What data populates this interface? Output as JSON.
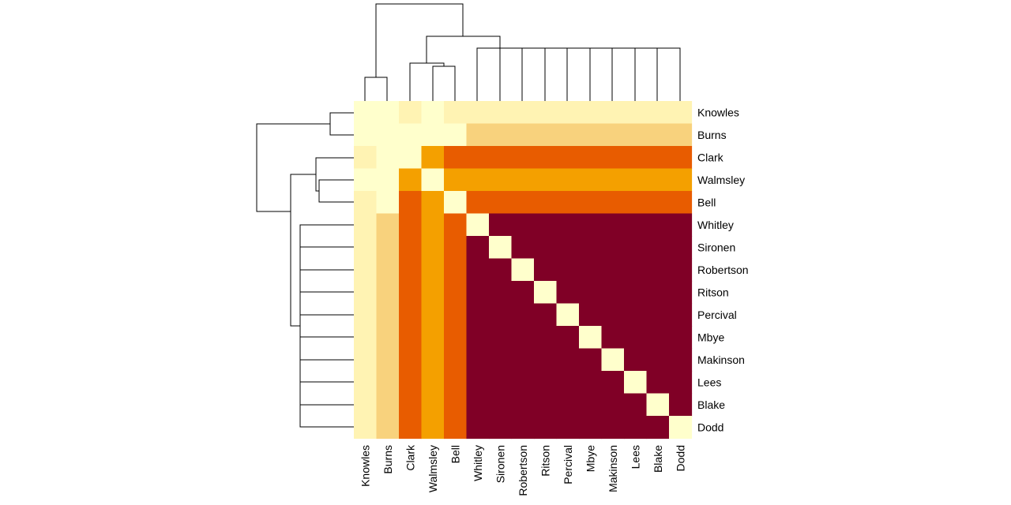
{
  "chart_data": {
    "type": "heatmap",
    "title": "",
    "xlabel": "",
    "ylabel": "",
    "legend": "none",
    "grid": false,
    "rows": [
      "Knowles",
      "Burns",
      "Clark",
      "Walmsley",
      "Bell",
      "Whitley",
      "Sironen",
      "Robertson",
      "Ritson",
      "Percival",
      "Mbye",
      "Makinson",
      "Lees",
      "Blake",
      "Dodd"
    ],
    "columns": [
      "Knowles",
      "Burns",
      "Clark",
      "Walmsley",
      "Bell",
      "Whitley",
      "Sironen",
      "Robertson",
      "Ritson",
      "Percival",
      "Mbye",
      "Makinson",
      "Lees",
      "Blake",
      "Dodd"
    ],
    "color_scale": [
      "#FFFFCC",
      "#FFF3B3",
      "#F8D27D",
      "#F4A000",
      "#E85C00",
      "#800026"
    ],
    "values": [
      [
        0,
        0,
        1,
        0,
        1,
        1,
        1,
        1,
        1,
        1,
        1,
        1,
        1,
        1,
        1
      ],
      [
        0,
        0,
        0,
        0,
        0,
        2,
        2,
        2,
        2,
        2,
        2,
        2,
        2,
        2,
        2
      ],
      [
        1,
        0,
        0,
        3,
        4,
        4,
        4,
        4,
        4,
        4,
        4,
        4,
        4,
        4,
        4
      ],
      [
        0,
        0,
        3,
        0,
        3,
        3,
        3,
        3,
        3,
        3,
        3,
        3,
        3,
        3,
        3
      ],
      [
        1,
        0,
        4,
        3,
        0,
        4,
        4,
        4,
        4,
        4,
        4,
        4,
        4,
        4,
        4
      ],
      [
        1,
        2,
        4,
        3,
        4,
        0,
        5,
        5,
        5,
        5,
        5,
        5,
        5,
        5,
        5
      ],
      [
        1,
        2,
        4,
        3,
        4,
        5,
        0,
        5,
        5,
        5,
        5,
        5,
        5,
        5,
        5
      ],
      [
        1,
        2,
        4,
        3,
        4,
        5,
        5,
        0,
        5,
        5,
        5,
        5,
        5,
        5,
        5
      ],
      [
        1,
        2,
        4,
        3,
        4,
        5,
        5,
        5,
        0,
        5,
        5,
        5,
        5,
        5,
        5
      ],
      [
        1,
        2,
        4,
        3,
        4,
        5,
        5,
        5,
        5,
        0,
        5,
        5,
        5,
        5,
        5
      ],
      [
        1,
        2,
        4,
        3,
        4,
        5,
        5,
        5,
        5,
        5,
        0,
        5,
        5,
        5,
        5
      ],
      [
        1,
        2,
        4,
        3,
        4,
        5,
        5,
        5,
        5,
        5,
        5,
        0,
        5,
        5,
        5
      ],
      [
        1,
        2,
        4,
        3,
        4,
        5,
        5,
        5,
        5,
        5,
        5,
        5,
        0,
        5,
        5
      ],
      [
        1,
        2,
        4,
        3,
        4,
        5,
        5,
        5,
        5,
        5,
        5,
        5,
        5,
        0,
        5
      ],
      [
        1,
        2,
        4,
        3,
        4,
        5,
        5,
        5,
        5,
        5,
        5,
        5,
        5,
        5,
        0
      ]
    ]
  }
}
